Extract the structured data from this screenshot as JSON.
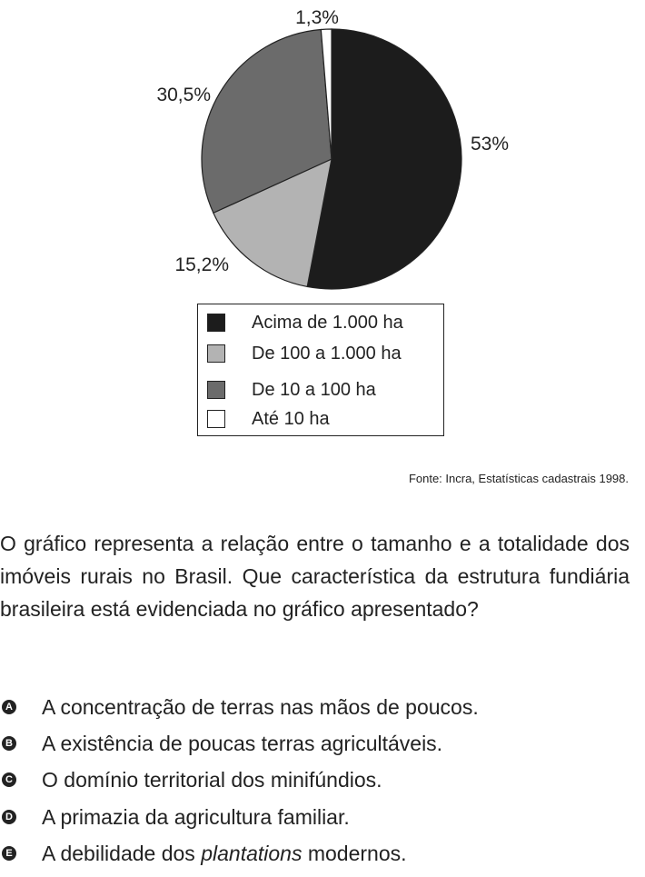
{
  "chart_data": {
    "type": "pie",
    "slices": [
      {
        "label": "Acima de 1.000 ha",
        "value": 53,
        "value_label": "53%",
        "color": "#1c1c1c"
      },
      {
        "label": "De 100 a 1.000 ha",
        "value": 15.2,
        "value_label": "15,2%",
        "color": "#b3b3b3"
      },
      {
        "label": "De 10 a 100 ha",
        "value": 30.5,
        "value_label": "30,5%",
        "color": "#6b6b6b"
      },
      {
        "label": "Até 10 ha",
        "value": 1.3,
        "value_label": "1,3%",
        "color": "#ffffff"
      }
    ],
    "legend_placement": "bottom",
    "source": "Fonte: Incra, Estatísticas cadastrais 1998."
  },
  "question": {
    "text": "O gráfico representa a relação entre o tamanho e a totalidade dos imóveis rurais no Brasil. Que característica da estrutura fundiária brasileira está evidenciada no gráfico apresentado?"
  },
  "options": [
    {
      "letter": "A",
      "text": "A concentração de terras nas mãos de poucos."
    },
    {
      "letter": "B",
      "text": "A existência de poucas terras agricultáveis."
    },
    {
      "letter": "C",
      "text": "O domínio territorial dos minifúndios."
    },
    {
      "letter": "D",
      "text": "A primazia da agricultura familiar."
    },
    {
      "letter": "E",
      "text_before": "A debilidade dos ",
      "text_italic": "plantations",
      "text_after": " modernos."
    }
  ]
}
